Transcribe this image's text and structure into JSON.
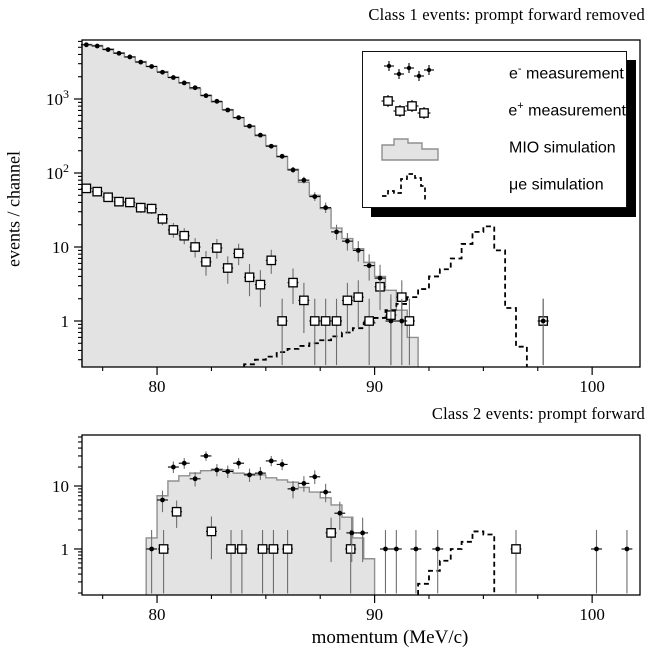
{
  "legend": {
    "items": [
      {
        "id": "e-minus",
        "marker": "e_minus",
        "pre": "e",
        "sup": "-",
        "post": " measurement"
      },
      {
        "id": "e-plus",
        "marker": "e_plus",
        "pre": "e",
        "sup": "+",
        "post": " measurement"
      },
      {
        "id": "mio",
        "marker": "mio",
        "pre": "MIO simulation",
        "sup": "",
        "post": ""
      },
      {
        "id": "mue",
        "marker": "mue",
        "pre": "μe simulation",
        "sup": "",
        "post": ""
      }
    ]
  },
  "colors": {
    "hist_fill": "#e3e3e3",
    "hist_stroke": "#8f8f8f",
    "frame": "#000000",
    "dashed": "#000000",
    "error_bar": "#6e6e6e",
    "marker": "#000000"
  },
  "chart_data": [
    {
      "type": "bar",
      "panel": "top",
      "title": "Class 1 events: prompt forward removed",
      "xlabel": "",
      "ylabel": "events / channel",
      "yscale": "log",
      "xlim": [
        76.55,
        102.2
      ],
      "ylim": [
        0.239,
        6270
      ],
      "x_ticks_major": [
        80,
        90,
        100
      ],
      "x_ticks_minor": [
        77.5,
        82.5,
        85,
        87.5,
        92.5,
        95,
        97.5
      ],
      "y_ticks_major": [
        {
          "v": 1,
          "base": "1",
          "exp": ""
        },
        {
          "v": 10,
          "base": "10",
          "exp": ""
        },
        {
          "v": 100,
          "base": "10",
          "exp": "2"
        },
        {
          "v": 1000,
          "base": "10",
          "exp": "3"
        }
      ],
      "series": [
        {
          "name": "MIO simulation",
          "kind": "hist_filled",
          "bin_start": 76.5,
          "bin_width": 0.5,
          "values": [
            5450,
            5300,
            4750,
            4200,
            3700,
            3200,
            2750,
            2350,
            1980,
            1660,
            1380,
            1130,
            910,
            720,
            560,
            430,
            320,
            235,
            165,
            112,
            75,
            50,
            33,
            18,
            13,
            9.5,
            6.2,
            4.0,
            2.6,
            1.4,
            0.6
          ]
        },
        {
          "name": "μe simulation",
          "kind": "hist_dashed",
          "bin_start": 84.0,
          "bin_width": 0.5,
          "values": [
            0.26,
            0.3,
            0.33,
            0.38,
            0.42,
            0.46,
            0.5,
            0.55,
            0.62,
            0.7,
            0.8,
            0.95,
            1.1,
            1.4,
            1.7,
            2.1,
            2.7,
            4.0,
            5.0,
            7.0,
            11,
            16,
            19,
            9,
            1.5,
            0.45
          ]
        },
        {
          "name": "e+ measurement",
          "kind": "points_square",
          "bin_width": 0.5,
          "points": [
            [
              76.75,
              62
            ],
            [
              77.25,
              56
            ],
            [
              77.75,
              47
            ],
            [
              78.25,
              41
            ],
            [
              78.75,
              40
            ],
            [
              79.25,
              34
            ],
            [
              79.75,
              33
            ],
            [
              80.25,
              24
            ],
            [
              80.75,
              17
            ],
            [
              81.25,
              14.2
            ],
            [
              81.75,
              10
            ],
            [
              82.25,
              6.3
            ],
            [
              82.75,
              9.7
            ],
            [
              83.25,
              5.2
            ],
            [
              83.75,
              8.2
            ],
            [
              84.25,
              3.9
            ],
            [
              84.75,
              3.1
            ],
            [
              85.25,
              6.6
            ],
            [
              85.75,
              1
            ],
            [
              86.25,
              3.3
            ],
            [
              86.75,
              1.9
            ],
            [
              87.25,
              1
            ],
            [
              87.75,
              1
            ],
            [
              88.25,
              1
            ],
            [
              88.75,
              1.9
            ],
            [
              89.25,
              2.1
            ],
            [
              89.75,
              1
            ],
            [
              90.25,
              2.9
            ],
            [
              90.75,
              1.2
            ],
            [
              91.25,
              2.1
            ],
            [
              91.6,
              1
            ],
            [
              97.75,
              1
            ]
          ]
        },
        {
          "name": "e- measurement",
          "kind": "points_dot",
          "bin_width": 0.5,
          "points": [
            [
              76.75,
              5400
            ],
            [
              77.25,
              5200
            ],
            [
              77.75,
              4650
            ],
            [
              78.25,
              4150
            ],
            [
              78.75,
              3700
            ],
            [
              79.25,
              3150
            ],
            [
              79.75,
              2750
            ],
            [
              80.25,
              2300
            ],
            [
              80.75,
              1950
            ],
            [
              81.25,
              1650
            ],
            [
              81.75,
              1420
            ],
            [
              82.25,
              1110
            ],
            [
              82.75,
              930
            ],
            [
              83.25,
              710
            ],
            [
              83.75,
              560
            ],
            [
              84.25,
              430
            ],
            [
              84.75,
              325
            ],
            [
              85.25,
              230
            ],
            [
              85.75,
              168
            ],
            [
              86.25,
              110
            ],
            [
              86.75,
              80
            ],
            [
              87.25,
              48
            ],
            [
              87.75,
              34
            ],
            [
              88.25,
              16
            ],
            [
              88.75,
              12
            ],
            [
              89.25,
              9
            ],
            [
              89.75,
              5.6
            ],
            [
              90.25,
              3.8
            ],
            [
              90.75,
              1
            ],
            [
              91.25,
              1
            ],
            [
              97.75,
              1
            ]
          ]
        }
      ]
    },
    {
      "type": "bar",
      "panel": "bottom",
      "title": "Class 2 events: prompt forward",
      "xlabel": "momentum (MeV/c)",
      "ylabel": "",
      "yscale": "log",
      "xlim": [
        76.55,
        102.2
      ],
      "ylim": [
        0.186,
        64.5
      ],
      "x_ticks_major": [
        80,
        90,
        100
      ],
      "x_ticks_minor": [
        77.5,
        82.5,
        85,
        87.5,
        92.5,
        95,
        97.5
      ],
      "y_ticks_major": [
        {
          "v": 1,
          "base": "1",
          "exp": ""
        },
        {
          "v": 10,
          "base": "10",
          "exp": ""
        }
      ],
      "series": [
        {
          "name": "MIO simulation",
          "kind": "hist_filled",
          "bin_start": 79.5,
          "bin_width": 0.5,
          "values": [
            1.5,
            7,
            12,
            14.5,
            16,
            17.5,
            18.5,
            18,
            16,
            15.5,
            15,
            13.5,
            12.5,
            11.5,
            9.5,
            8,
            6.5,
            5,
            3.2,
            1.5,
            0.7
          ]
        },
        {
          "name": "μe simulation",
          "kind": "hist_dashed",
          "bin_start": 92.0,
          "bin_width": 0.5,
          "values": [
            0.28,
            0.45,
            0.65,
            1.0,
            1.3,
            1.9,
            1.7
          ]
        },
        {
          "name": "e+ measurement",
          "kind": "points_square",
          "bin_width": 0.5,
          "points": [
            [
              80.3,
              1
            ],
            [
              80.9,
              3.9
            ],
            [
              82.5,
              1.9
            ],
            [
              83.4,
              1
            ],
            [
              83.9,
              1
            ],
            [
              84.85,
              1
            ],
            [
              85.35,
              1
            ],
            [
              86.0,
              1
            ],
            [
              88.0,
              1.8
            ],
            [
              88.9,
              1
            ],
            [
              96.5,
              1
            ]
          ]
        },
        {
          "name": "e- measurement",
          "kind": "points_dot",
          "bin_width": 0.5,
          "points": [
            [
              79.75,
              1
            ],
            [
              80.25,
              6
            ],
            [
              80.75,
              20
            ],
            [
              81.25,
              23
            ],
            [
              81.75,
              13
            ],
            [
              82.25,
              30
            ],
            [
              82.75,
              18
            ],
            [
              83.25,
              17
            ],
            [
              83.75,
              23
            ],
            [
              84.25,
              15
            ],
            [
              84.75,
              16
            ],
            [
              85.25,
              25
            ],
            [
              85.75,
              22
            ],
            [
              86.25,
              9
            ],
            [
              86.75,
              11
            ],
            [
              87.25,
              14
            ],
            [
              87.75,
              8
            ],
            [
              88.4,
              3.7
            ],
            [
              88.95,
              1.8
            ],
            [
              89.45,
              1.8
            ],
            [
              90.5,
              1
            ],
            [
              91.0,
              1
            ],
            [
              91.9,
              1
            ],
            [
              92.9,
              1
            ],
            [
              100.2,
              1
            ],
            [
              101.6,
              1
            ]
          ]
        }
      ]
    }
  ]
}
